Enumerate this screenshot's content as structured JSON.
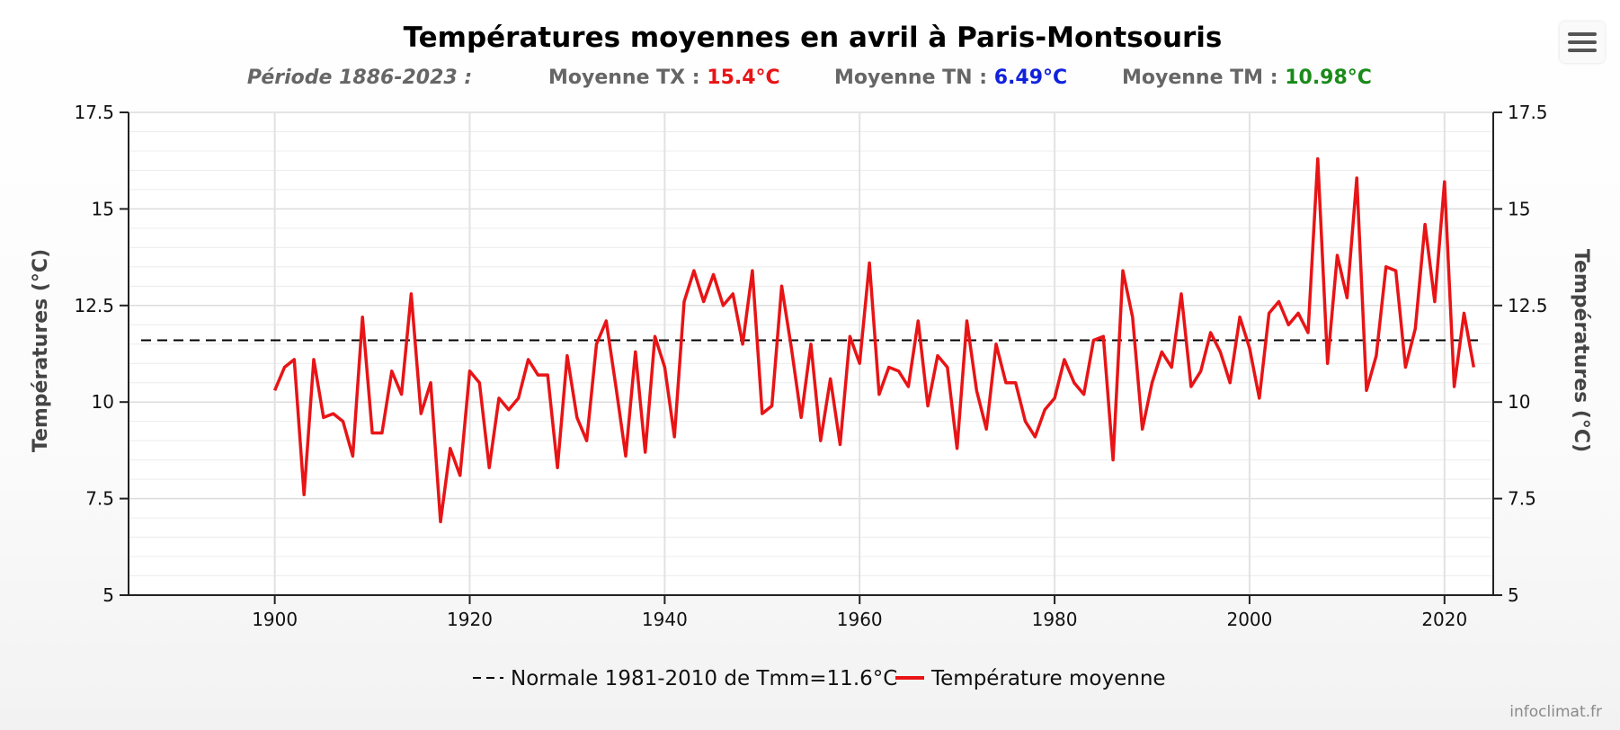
{
  "header": {
    "title": "Températures moyennes en avril à Paris-Montsouris",
    "period_label": "Période 1886-2023 :",
    "tx_label": "Moyenne TX : ",
    "tx_value": "15.4°C",
    "tn_label": "Moyenne TN : ",
    "tn_value": "6.49°C",
    "tm_label": "Moyenne TM : ",
    "tm_value": "10.98°C"
  },
  "menu": {
    "icon": "hamburger-menu-icon"
  },
  "credit": "infoclimat.fr",
  "colors": {
    "series": "#e81416",
    "tx": "#e81416",
    "tn": "#1122dd",
    "tm": "#1a8a1a",
    "normal": "#000000",
    "muted": "#666666"
  },
  "chart_data": {
    "type": "line",
    "xlabel": "",
    "ylabel": "Températures (°C)",
    "ylabel_right": "Températures (°C)",
    "xlim": [
      1885,
      2025
    ],
    "ylim": [
      5,
      17.5
    ],
    "x_ticks": [
      1900,
      1920,
      1940,
      1960,
      1980,
      2000,
      2020
    ],
    "y_ticks": [
      5,
      7.5,
      10,
      12.5,
      15,
      17.5
    ],
    "y_tick_labels": [
      "5",
      "7.5",
      "10",
      "12.5",
      "15",
      "17.5"
    ],
    "grid": true,
    "legend_position": "bottom",
    "reference_line": {
      "name": "Normale 1981-2010 de Tmm=11.6°C",
      "value": 11.6,
      "style": "dashed"
    },
    "series": [
      {
        "name": "Température moyenne",
        "x": [
          1900,
          1901,
          1902,
          1903,
          1904,
          1905,
          1906,
          1907,
          1908,
          1909,
          1910,
          1911,
          1912,
          1913,
          1914,
          1915,
          1916,
          1917,
          1918,
          1919,
          1920,
          1921,
          1922,
          1923,
          1924,
          1925,
          1926,
          1927,
          1928,
          1929,
          1930,
          1931,
          1932,
          1933,
          1934,
          1935,
          1936,
          1937,
          1938,
          1939,
          1940,
          1941,
          1942,
          1943,
          1944,
          1945,
          1946,
          1947,
          1948,
          1949,
          1950,
          1951,
          1952,
          1953,
          1954,
          1955,
          1956,
          1957,
          1958,
          1959,
          1960,
          1961,
          1962,
          1963,
          1964,
          1965,
          1966,
          1967,
          1968,
          1969,
          1970,
          1971,
          1972,
          1973,
          1974,
          1975,
          1976,
          1977,
          1978,
          1979,
          1980,
          1981,
          1982,
          1983,
          1984,
          1985,
          1986,
          1987,
          1988,
          1989,
          1990,
          1991,
          1992,
          1993,
          1994,
          1995,
          1996,
          1997,
          1998,
          1999,
          2000,
          2001,
          2002,
          2003,
          2004,
          2005,
          2006,
          2007,
          2008,
          2009,
          2010,
          2011,
          2012,
          2013,
          2014,
          2015,
          2016,
          2017,
          2018,
          2019,
          2020,
          2021,
          2022,
          2023
        ],
        "values": [
          10.3,
          10.9,
          11.1,
          7.6,
          11.1,
          9.6,
          9.7,
          9.5,
          8.6,
          12.2,
          9.2,
          9.2,
          10.8,
          10.2,
          12.8,
          9.7,
          10.5,
          6.9,
          8.8,
          8.1,
          10.8,
          10.5,
          8.3,
          10.1,
          9.8,
          10.1,
          11.1,
          10.7,
          10.7,
          8.3,
          11.2,
          9.6,
          9.0,
          11.5,
          12.1,
          10.4,
          8.6,
          11.3,
          8.7,
          11.7,
          10.9,
          9.1,
          12.6,
          13.4,
          12.6,
          13.3,
          12.5,
          12.8,
          11.5,
          13.4,
          9.7,
          9.9,
          13.0,
          11.4,
          9.6,
          11.5,
          9.0,
          10.6,
          8.9,
          11.7,
          11.0,
          13.6,
          10.2,
          10.9,
          10.8,
          10.4,
          12.1,
          9.9,
          11.2,
          10.9,
          8.8,
          12.1,
          10.3,
          9.3,
          11.5,
          10.5,
          10.5,
          9.5,
          9.1,
          9.8,
          10.1,
          11.1,
          10.5,
          10.2,
          11.6,
          11.7,
          8.5,
          13.4,
          12.2,
          9.3,
          10.5,
          11.3,
          10.9,
          12.8,
          10.4,
          10.8,
          11.8,
          11.3,
          10.5,
          12.2,
          11.4,
          10.1,
          12.3,
          12.6,
          12.0,
          12.3,
          11.8,
          16.3,
          11.0,
          13.8,
          12.7,
          15.8,
          10.3,
          11.2,
          13.5,
          13.4,
          10.9,
          11.9,
          14.6,
          12.6,
          15.7,
          10.4,
          12.3,
          10.9
        ]
      }
    ]
  }
}
